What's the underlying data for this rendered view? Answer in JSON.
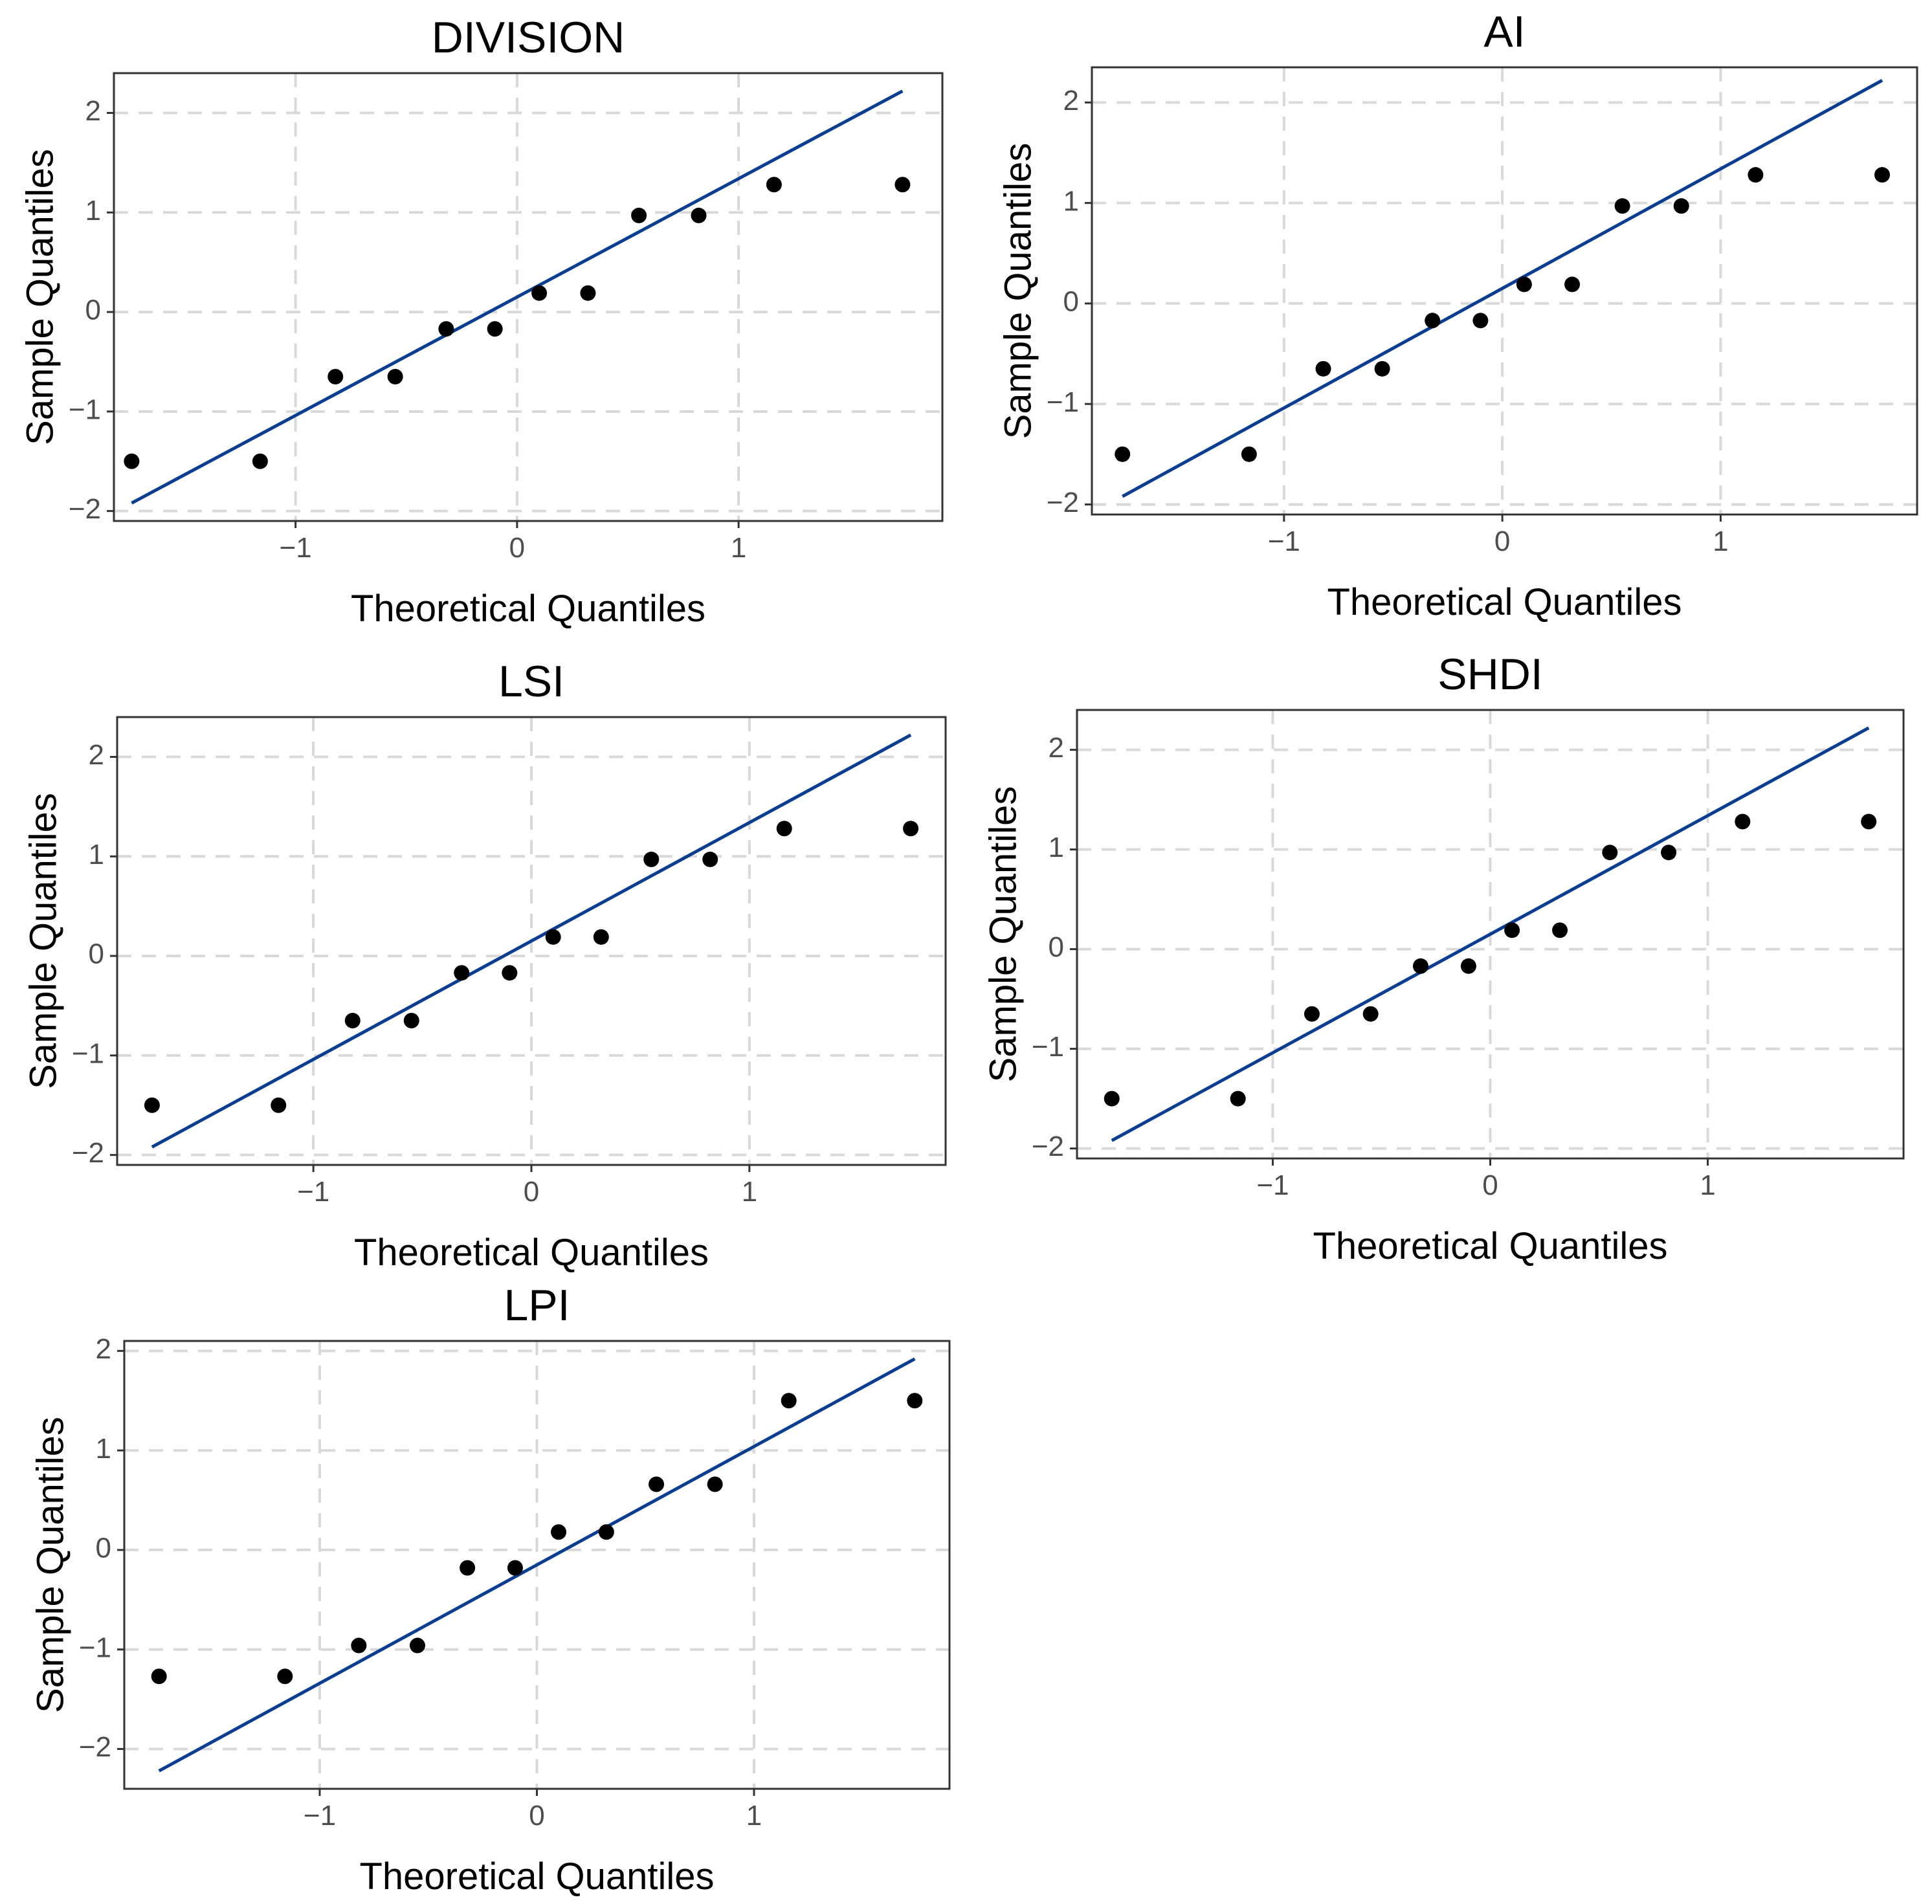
{
  "chart_data": [
    {
      "type": "scatter",
      "title": "DIVISION",
      "xlabel": "Theoretical Quantiles",
      "ylabel": "Sample Quantiles",
      "xlim": [
        -1.82,
        1.92
      ],
      "ylim": [
        -2.1,
        2.4
      ],
      "xticks": [
        -1,
        0,
        1
      ],
      "xtick_labels": [
        "−1",
        "0",
        "1"
      ],
      "yticks": [
        -2,
        -1,
        0,
        1,
        2
      ],
      "ytick_labels": [
        "−2",
        "−1",
        "0",
        "1",
        "2"
      ],
      "grid": true,
      "x": [
        -1.74,
        -1.16,
        -0.82,
        -0.55,
        -0.32,
        -0.1,
        0.1,
        0.32,
        0.55,
        0.82,
        1.16,
        1.74
      ],
      "y": [
        -1.5,
        -1.5,
        -0.65,
        -0.65,
        -0.17,
        -0.17,
        0.19,
        0.19,
        0.97,
        0.97,
        1.28,
        1.28
      ],
      "reference_line": {
        "x": [
          -1.74,
          1.74
        ],
        "y": [
          -1.92,
          2.22
        ]
      }
    },
    {
      "type": "scatter",
      "title": "AI",
      "xlabel": "Theoretical Quantiles",
      "ylabel": "Sample Quantiles",
      "xlim": [
        -1.88,
        1.9
      ],
      "ylim": [
        -2.1,
        2.35
      ],
      "xticks": [
        -1,
        0,
        1
      ],
      "xtick_labels": [
        "−1",
        "0",
        "1"
      ],
      "yticks": [
        -2,
        -1,
        0,
        1,
        2
      ],
      "ytick_labels": [
        "−2",
        "−1",
        "0",
        "1",
        "2"
      ],
      "grid": true,
      "x": [
        -1.74,
        -1.16,
        -0.82,
        -0.55,
        -0.32,
        -0.1,
        0.1,
        0.32,
        0.55,
        0.82,
        1.16,
        1.74
      ],
      "y": [
        -1.5,
        -1.5,
        -0.65,
        -0.65,
        -0.17,
        -0.17,
        0.19,
        0.19,
        0.97,
        0.97,
        1.28,
        1.28
      ],
      "reference_line": {
        "x": [
          -1.74,
          1.74
        ],
        "y": [
          -1.92,
          2.22
        ]
      }
    },
    {
      "type": "scatter",
      "title": "LSI",
      "xlabel": "Theoretical Quantiles",
      "ylabel": "Sample Quantiles",
      "xlim": [
        -1.9,
        1.9
      ],
      "ylim": [
        -2.1,
        2.4
      ],
      "xticks": [
        -1,
        0,
        1
      ],
      "xtick_labels": [
        "−1",
        "0",
        "1"
      ],
      "yticks": [
        -2,
        -1,
        0,
        1,
        2
      ],
      "ytick_labels": [
        "−2",
        "−1",
        "0",
        "1",
        "2"
      ],
      "grid": true,
      "x": [
        -1.74,
        -1.16,
        -0.82,
        -0.55,
        -0.32,
        -0.1,
        0.1,
        0.32,
        0.55,
        0.82,
        1.16,
        1.74
      ],
      "y": [
        -1.5,
        -1.5,
        -0.65,
        -0.65,
        -0.17,
        -0.17,
        0.19,
        0.19,
        0.97,
        0.97,
        1.28,
        1.28
      ],
      "reference_line": {
        "x": [
          -1.74,
          1.74
        ],
        "y": [
          -1.92,
          2.22
        ]
      }
    },
    {
      "type": "scatter",
      "title": "SHDI",
      "xlabel": "Theoretical Quantiles",
      "ylabel": "Sample Quantiles",
      "xlim": [
        -1.9,
        1.9
      ],
      "ylim": [
        -2.1,
        2.4
      ],
      "xticks": [
        -1,
        0,
        1
      ],
      "xtick_labels": [
        "−1",
        "0",
        "1"
      ],
      "yticks": [
        -2,
        -1,
        0,
        1,
        2
      ],
      "ytick_labels": [
        "−2",
        "−1",
        "0",
        "1",
        "2"
      ],
      "grid": true,
      "x": [
        -1.74,
        -1.16,
        -0.82,
        -0.55,
        -0.32,
        -0.1,
        0.1,
        0.32,
        0.55,
        0.82,
        1.16,
        1.74
      ],
      "y": [
        -1.5,
        -1.5,
        -0.65,
        -0.65,
        -0.17,
        -0.17,
        0.19,
        0.19,
        0.97,
        0.97,
        1.28,
        1.28
      ],
      "reference_line": {
        "x": [
          -1.74,
          1.74
        ],
        "y": [
          -1.92,
          2.22
        ]
      }
    },
    {
      "type": "scatter",
      "title": "LPI",
      "xlabel": "Theoretical Quantiles",
      "ylabel": "Sample Quantiles",
      "xlim": [
        -1.9,
        1.9
      ],
      "ylim": [
        -2.4,
        2.1
      ],
      "xticks": [
        -1,
        0,
        1
      ],
      "xtick_labels": [
        "−1",
        "0",
        "1"
      ],
      "yticks": [
        -2,
        -1,
        0,
        1,
        2
      ],
      "ytick_labels": [
        "−2",
        "−1",
        "0",
        "1",
        "2"
      ],
      "grid": true,
      "x": [
        -1.74,
        -1.16,
        -0.82,
        -0.55,
        -0.32,
        -0.1,
        0.1,
        0.32,
        0.55,
        0.82,
        1.16,
        1.74
      ],
      "y": [
        -1.27,
        -1.27,
        -0.96,
        -0.96,
        -0.18,
        -0.18,
        0.18,
        0.18,
        0.66,
        0.66,
        1.5,
        1.5
      ],
      "reference_line": {
        "x": [
          -1.74,
          1.74
        ],
        "y": [
          -2.22,
          1.92
        ]
      }
    }
  ],
  "colors": {
    "reference_line": "#0b3d91",
    "points": "#000000",
    "grid": "#d9d9d9",
    "frame": "#333333",
    "tick_text": "#4d4d4d"
  }
}
